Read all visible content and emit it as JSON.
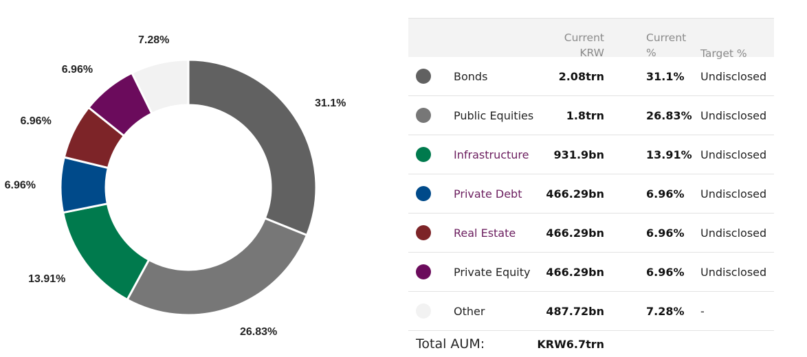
{
  "chart_data": {
    "type": "donut",
    "categories": [
      "Bonds",
      "Public Equities",
      "Infrastructure",
      "Private Debt",
      "Real Estate",
      "Private Equity",
      "Other"
    ],
    "values": [
      31.1,
      26.83,
      13.91,
      6.96,
      6.96,
      6.96,
      7.28
    ],
    "labels": [
      "31.1%",
      "26.83%",
      "13.91%",
      "6.96%",
      "6.96%",
      "6.96%",
      "7.28%"
    ],
    "colors": [
      "#616161",
      "#777777",
      "#007a4d",
      "#004a8a",
      "#7d2428",
      "#6b0b5c",
      "#f2f2f2"
    ],
    "unit": "%"
  },
  "table": {
    "headers": {
      "current_krw": [
        "Current",
        "KRW"
      ],
      "current_pct": [
        "Current",
        "%"
      ],
      "target_pct": "Target %"
    },
    "rows": [
      {
        "name": "Bonds",
        "krw": "2.08trn",
        "pct": "31.1%",
        "target": "Undisclosed",
        "color": "#616161",
        "link": false
      },
      {
        "name": "Public Equities",
        "krw": "1.8trn",
        "pct": "26.83%",
        "target": "Undisclosed",
        "color": "#777777",
        "link": false
      },
      {
        "name": "Infrastructure",
        "krw": "931.9bn",
        "pct": "13.91%",
        "target": "Undisclosed",
        "color": "#007a4d",
        "link": true
      },
      {
        "name": "Private Debt",
        "krw": "466.29bn",
        "pct": "6.96%",
        "target": "Undisclosed",
        "color": "#004a8a",
        "link": true
      },
      {
        "name": "Real Estate",
        "krw": "466.29bn",
        "pct": "6.96%",
        "target": "Undisclosed",
        "color": "#7d2428",
        "link": true
      },
      {
        "name": "Private Equity",
        "krw": "466.29bn",
        "pct": "6.96%",
        "target": "Undisclosed",
        "color": "#6b0b5c",
        "link": false
      },
      {
        "name": "Other",
        "krw": "487.72bn",
        "pct": "7.28%",
        "target": "-",
        "color": "#f2f2f2",
        "link": false
      }
    ],
    "total_label": "Total AUM:",
    "total_value": "KRW6.7trn"
  }
}
